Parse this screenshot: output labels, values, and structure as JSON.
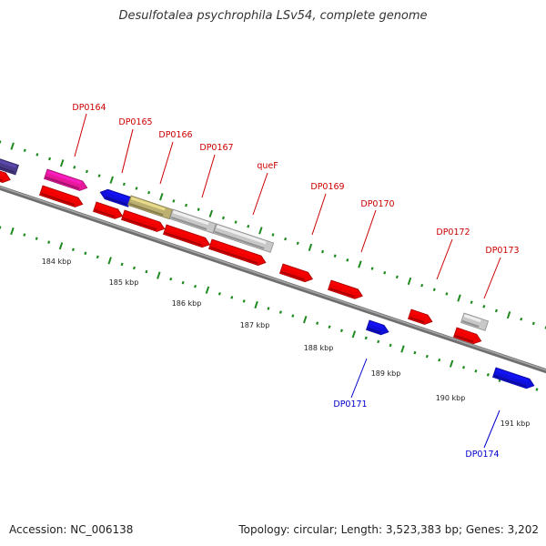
{
  "title": "Desulfotalea psychrophila LSv54, complete genome",
  "footer": {
    "accession": "Accession: NC_006138",
    "summary": "Topology: circular; Length: 3,523,383 bp; Genes: 3,202"
  },
  "colors": {
    "backbone": "#8a8a8a",
    "tick": "#1f8a1f",
    "gene_label_forward": "#cc0000",
    "gene_label_reverse": "#0000cc",
    "gene_red": "#ee0000",
    "gene_blue": "#1010dd",
    "gene_grey": "#c8c8c8",
    "gene_pink": "#e8189a",
    "gene_purple": "#4a3a8a",
    "gene_olive": "#bbb070"
  },
  "scale_labels": [
    "184 kbp",
    "185 kbp",
    "186 kbp",
    "187 kbp",
    "188 kbp",
    "189 kbp",
    "190 kbp",
    "191 kbp"
  ],
  "gene_labels": [
    {
      "text": "DP0164",
      "strand": "forward"
    },
    {
      "text": "DP0165",
      "strand": "forward"
    },
    {
      "text": "DP0166",
      "strand": "forward"
    },
    {
      "text": "DP0167",
      "strand": "forward"
    },
    {
      "text": "queF",
      "strand": "forward"
    },
    {
      "text": "DP0169",
      "strand": "forward"
    },
    {
      "text": "DP0170",
      "strand": "forward"
    },
    {
      "text": "DP0172",
      "strand": "forward"
    },
    {
      "text": "DP0173",
      "strand": "forward"
    },
    {
      "text": "DP0171",
      "strand": "reverse"
    },
    {
      "text": "DP0174",
      "strand": "reverse"
    }
  ]
}
